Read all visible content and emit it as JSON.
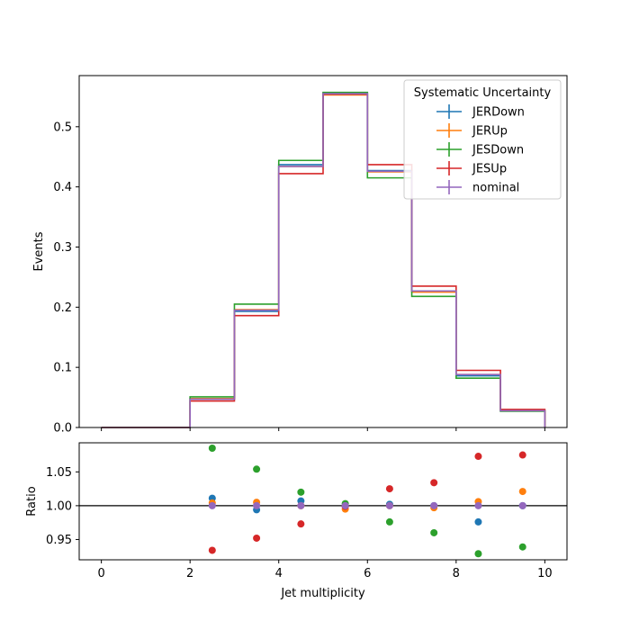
{
  "chart_data": [
    {
      "type": "step",
      "xlabel": "",
      "ylabel": "Events",
      "xlim": [
        -0.5,
        10.5
      ],
      "ylim": [
        0,
        0.585
      ],
      "xticks": [
        0,
        2,
        4,
        6,
        8,
        10
      ],
      "yticks": [
        "0.0",
        "0.1",
        "0.2",
        "0.3",
        "0.4",
        "0.5"
      ],
      "ytick_values": [
        0,
        0.1,
        0.2,
        0.3,
        0.4,
        0.5
      ],
      "bin_edges": [
        0,
        1,
        2,
        3,
        4,
        5,
        6,
        7,
        8,
        9,
        10
      ],
      "legend": {
        "title": "Systematic Uncertainty",
        "placement": "top-right"
      },
      "series": [
        {
          "name": "JERDown",
          "color": "#1f77b4",
          "values": [
            0,
            0,
            0.048,
            0.193,
            0.437,
            0.556,
            0.427,
            0.227,
            0.086,
            0.028
          ]
        },
        {
          "name": "JERUp",
          "color": "#ff7f0e",
          "values": [
            0,
            0,
            0.048,
            0.196,
            0.434,
            0.553,
            0.425,
            0.225,
            0.088,
            0.029
          ]
        },
        {
          "name": "JESDown",
          "color": "#2ca02c",
          "values": [
            0,
            0,
            0.051,
            0.205,
            0.444,
            0.557,
            0.415,
            0.218,
            0.082,
            0.027
          ]
        },
        {
          "name": "JESUp",
          "color": "#d62728",
          "values": [
            0,
            0,
            0.044,
            0.186,
            0.422,
            0.554,
            0.437,
            0.235,
            0.095,
            0.03
          ]
        },
        {
          "name": "nominal",
          "color": "#9467bd",
          "values": [
            0,
            0,
            0.047,
            0.195,
            0.434,
            0.555,
            0.426,
            0.227,
            0.088,
            0.028
          ]
        }
      ]
    },
    {
      "type": "scatter",
      "xlabel": "Jet multiplicity",
      "ylabel": "Ratio",
      "xlim": [
        -0.5,
        10.5
      ],
      "ylim": [
        0.92,
        1.093
      ],
      "xticks": [
        "0",
        "2",
        "4",
        "6",
        "8",
        "10"
      ],
      "xtick_values": [
        0,
        2,
        4,
        6,
        8,
        10
      ],
      "yticks": [
        "0.95",
        "1.00",
        "1.05"
      ],
      "ytick_values": [
        0.95,
        1.0,
        1.05
      ],
      "reference_line": 1.0,
      "x": [
        2.5,
        3.5,
        4.5,
        5.5,
        6.5,
        7.5,
        8.5,
        9.5
      ],
      "series": [
        {
          "name": "JERDown",
          "color": "#1f77b4",
          "values": [
            1.011,
            0.994,
            1.007,
            0.999,
            1.002,
            1.0,
            0.976,
            1.0
          ]
        },
        {
          "name": "JERUp",
          "color": "#ff7f0e",
          "values": [
            1.004,
            1.005,
            1.0,
            0.995,
            1.0,
            0.997,
            1.006,
            1.021
          ]
        },
        {
          "name": "JESDown",
          "color": "#2ca02c",
          "values": [
            1.085,
            1.054,
            1.02,
            1.003,
            0.976,
            0.96,
            0.929,
            0.939
          ]
        },
        {
          "name": "JESUp",
          "color": "#d62728",
          "values": [
            0.934,
            0.952,
            0.973,
            0.999,
            1.025,
            1.034,
            1.073,
            1.075
          ]
        },
        {
          "name": "nominal",
          "color": "#9467bd",
          "values": [
            1.0,
            1.0,
            1.0,
            1.0,
            1.0,
            1.0,
            1.0,
            1.0
          ]
        }
      ]
    }
  ]
}
